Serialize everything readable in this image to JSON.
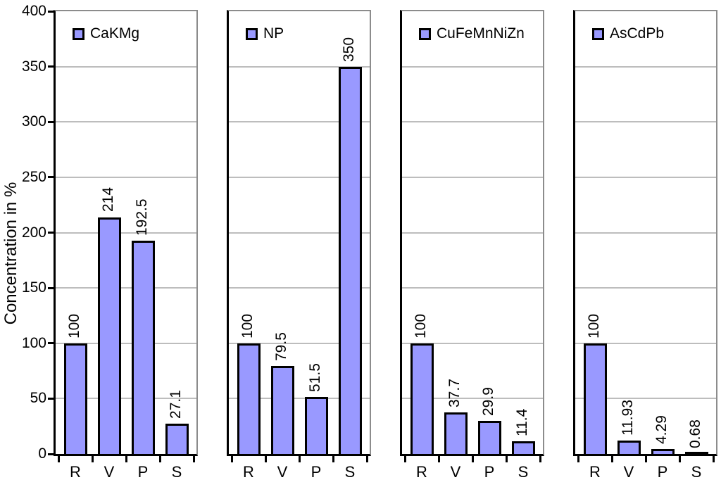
{
  "chart_data": {
    "type": "bar",
    "ylabel": "Concentration in %",
    "ylim": [
      0,
      400
    ],
    "ytick_step": 50,
    "ytick_labels": [
      "400",
      "350",
      "300",
      "250",
      "200",
      "150",
      "100",
      "50",
      "0"
    ],
    "categories": [
      "R",
      "V",
      "P",
      "S"
    ],
    "panels": [
      {
        "legend": "CaKMg",
        "values": [
          100,
          214,
          192.5,
          27.1
        ]
      },
      {
        "legend": "NP",
        "values": [
          100,
          79.5,
          51.5,
          350
        ]
      },
      {
        "legend": "CuFeMnNiZn",
        "values": [
          100,
          37.7,
          29.9,
          11.4
        ]
      },
      {
        "legend": "AsCdPb",
        "values": [
          100,
          11.93,
          4.29,
          0.68
        ]
      }
    ],
    "grid": true,
    "legend_position": "top-left-inside",
    "bar_value_labels_rotated": true,
    "colors": {
      "bar_fill": "#9999FF",
      "bar_border": "#000000",
      "gridline": "#BDBDBD",
      "panel_border": "#8C8C8C",
      "axis": "#000000",
      "text": "#000000",
      "background": "#FFFFFF"
    }
  }
}
